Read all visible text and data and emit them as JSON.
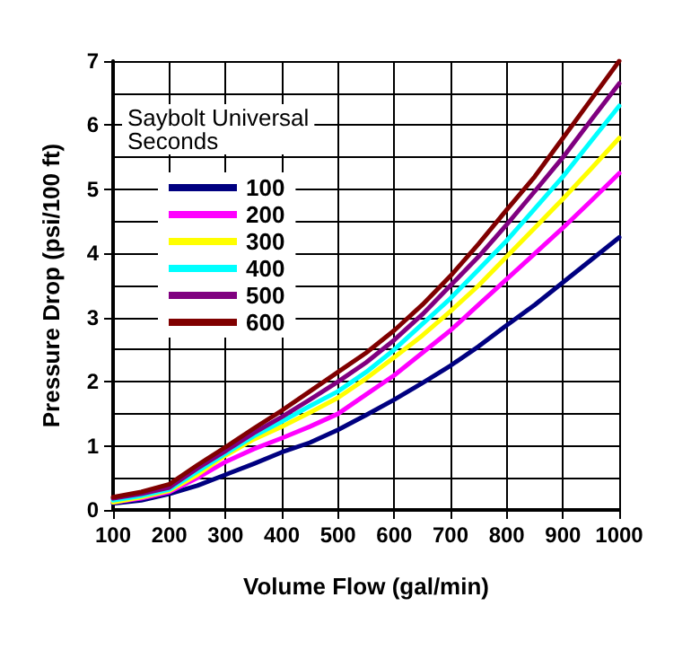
{
  "chart_data": {
    "type": "line",
    "xlabel": "Volume Flow (gal/min)",
    "ylabel": "Pressure Drop (psi/100 ft)",
    "legend_title": "Saybolt Universal\nSeconds",
    "legend": "top left",
    "grid": true,
    "marker": "none",
    "line_style": "solid",
    "x": [
      100,
      150,
      200,
      250,
      300,
      350,
      400,
      450,
      500,
      550,
      600,
      650,
      700,
      750,
      800,
      850,
      900,
      950,
      1000
    ],
    "xlim": [
      100,
      1000
    ],
    "xticks": [
      100,
      200,
      300,
      400,
      500,
      600,
      700,
      800,
      900,
      1000
    ],
    "ylim": [
      0,
      7
    ],
    "yticks": [
      0,
      1,
      2,
      3,
      4,
      5,
      6,
      7
    ],
    "series": [
      {
        "name": "100",
        "color": "#000080",
        "values": [
          0.1,
          0.15,
          0.25,
          0.38,
          0.55,
          0.72,
          0.9,
          1.05,
          1.25,
          1.48,
          1.72,
          1.98,
          2.25,
          2.55,
          2.88,
          3.2,
          3.55,
          3.9,
          4.25
        ]
      },
      {
        "name": "200",
        "color": "#ff00ff",
        "values": [
          0.12,
          0.18,
          0.28,
          0.5,
          0.75,
          0.95,
          1.12,
          1.3,
          1.5,
          1.8,
          2.1,
          2.45,
          2.8,
          3.2,
          3.6,
          4.0,
          4.4,
          4.82,
          5.25
        ]
      },
      {
        "name": "300",
        "color": "#ffff00",
        "values": [
          0.12,
          0.2,
          0.3,
          0.55,
          0.85,
          1.1,
          1.3,
          1.52,
          1.75,
          2.05,
          2.38,
          2.72,
          3.1,
          3.5,
          3.95,
          4.4,
          4.85,
          5.32,
          5.8
        ]
      },
      {
        "name": "400",
        "color": "#00ffff",
        "values": [
          0.15,
          0.22,
          0.32,
          0.6,
          0.88,
          1.15,
          1.38,
          1.62,
          1.85,
          2.15,
          2.5,
          2.9,
          3.3,
          3.75,
          4.2,
          4.7,
          5.2,
          5.75,
          6.3
        ]
      },
      {
        "name": "500",
        "color": "#800080",
        "values": [
          0.18,
          0.25,
          0.35,
          0.65,
          0.92,
          1.2,
          1.45,
          1.72,
          2.0,
          2.3,
          2.65,
          3.05,
          3.5,
          3.95,
          4.45,
          4.97,
          5.5,
          6.08,
          6.65
        ]
      },
      {
        "name": "600",
        "color": "#800000",
        "values": [
          0.2,
          0.28,
          0.4,
          0.7,
          0.98,
          1.27,
          1.55,
          1.85,
          2.15,
          2.45,
          2.8,
          3.2,
          3.65,
          4.15,
          4.68,
          5.2,
          5.8,
          6.4,
          7.0
        ]
      }
    ]
  }
}
